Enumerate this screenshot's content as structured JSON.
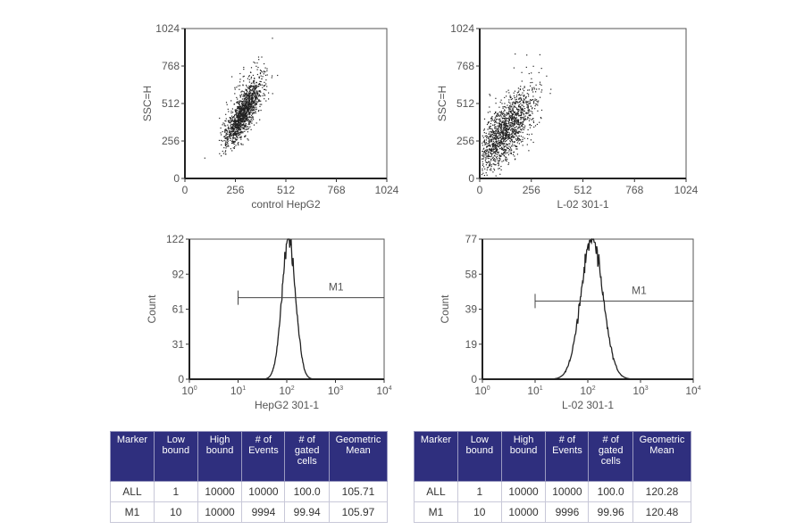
{
  "chart_data": [
    {
      "type": "scatter",
      "xlabel": "control HepG2",
      "ylabel": "SSC=H",
      "xlim": [
        0,
        1024
      ],
      "ylim": [
        0,
        1024
      ],
      "xticks": [
        "0",
        "256",
        "512",
        "768",
        "1024"
      ],
      "yticks": [
        "0",
        "256",
        "512",
        "768",
        "1024"
      ],
      "cluster": {
        "x_center": 290,
        "y_center": 440,
        "x_spread": 45,
        "y_spread": 110,
        "correlation": 0.8
      }
    },
    {
      "type": "scatter",
      "xlabel": "L-02   301-1",
      "ylabel": "SSC=H",
      "xlim": [
        0,
        1024
      ],
      "ylim": [
        0,
        1024
      ],
      "xticks": [
        "0",
        "256",
        "512",
        "768",
        "1024"
      ],
      "yticks": [
        "0",
        "256",
        "512",
        "768",
        "1024"
      ],
      "cluster": {
        "x_center": 120,
        "y_center": 310,
        "x_spread": 70,
        "y_spread": 130,
        "correlation": 0.7
      }
    },
    {
      "type": "line",
      "subtype": "histogram",
      "xlabel": "HepG2  301-1",
      "ylabel": "Count",
      "xscale": "log",
      "xlim": [
        1,
        10000
      ],
      "ylim": [
        0,
        122
      ],
      "xticks": [
        "10^0",
        "10^1",
        "10^2",
        "10^3",
        "10^4"
      ],
      "yticks": [
        "0",
        "31",
        "61",
        "92",
        "122"
      ],
      "peak_x": 110,
      "peak_count": 122,
      "log_spread": 0.14,
      "marker": {
        "label": "M1",
        "low": 10,
        "high": 10000,
        "count_level": 71
      }
    },
    {
      "type": "line",
      "subtype": "histogram",
      "xlabel": "L-02   301-1",
      "ylabel": "Count",
      "xscale": "log",
      "xlim": [
        1,
        10000
      ],
      "ylim": [
        0,
        77
      ],
      "xticks": [
        "10^0",
        "10^1",
        "10^2",
        "10^3",
        "10^4"
      ],
      "yticks": [
        "0",
        "19",
        "39",
        "58",
        "77"
      ],
      "peak_x": 120,
      "peak_count": 77,
      "log_spread": 0.21,
      "marker": {
        "label": "M1",
        "low": 10,
        "high": 10000,
        "count_level": 43
      }
    }
  ],
  "tables": [
    {
      "headers": [
        "Marker",
        "Low bound",
        "High bound",
        "# of Events",
        "# of gated cells",
        "Geometric Mean"
      ],
      "rows": [
        [
          "ALL",
          "1",
          "10000",
          "10000",
          "100.0",
          "105.71"
        ],
        [
          "M1",
          "10",
          "10000",
          "9994",
          "99.94",
          "105.97"
        ]
      ]
    },
    {
      "headers": [
        "Marker",
        "Low bound",
        "High bound",
        "# of Events",
        "# of gated cells",
        "Geometric Mean"
      ],
      "rows": [
        [
          "ALL",
          "1",
          "10000",
          "10000",
          "100.0",
          "120.28"
        ],
        [
          "M1",
          "10",
          "10000",
          "9996",
          "99.96",
          "120.48"
        ]
      ]
    }
  ],
  "colors": {
    "header_bg": "#2f2f7e",
    "axis": "#444444",
    "text": "#555555"
  }
}
